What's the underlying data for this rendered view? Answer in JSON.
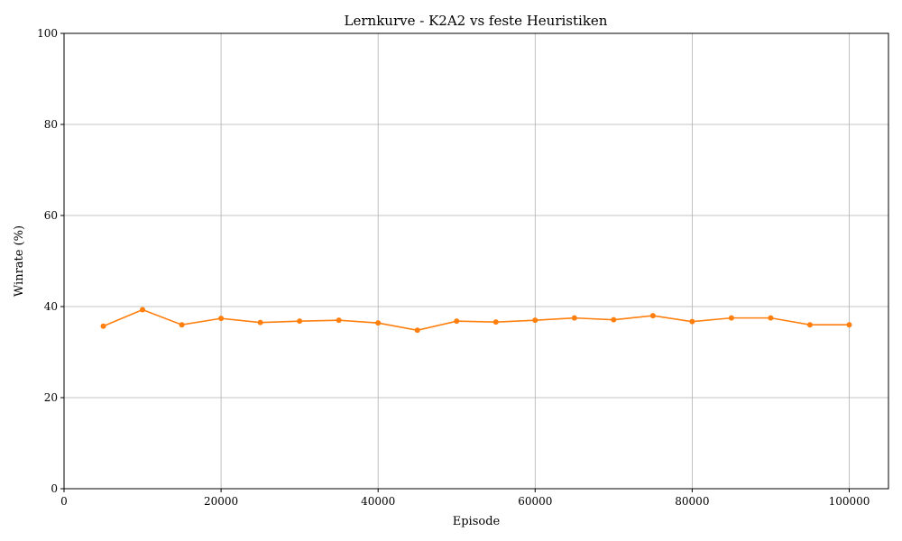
{
  "chart_data": {
    "type": "line",
    "title": "Lernkurve - K2A2 vs feste Heuristiken",
    "xlabel": "Episode",
    "ylabel": "Winrate (%)",
    "xlim": [
      0,
      105000
    ],
    "ylim": [
      0,
      100
    ],
    "xticks": [
      0,
      20000,
      40000,
      60000,
      80000,
      100000
    ],
    "yticks": [
      0,
      20,
      40,
      60,
      80,
      100
    ],
    "xtick_labels": [
      "0",
      "20000",
      "40000",
      "60000",
      "80000",
      "100000"
    ],
    "ytick_labels": [
      "0",
      "20",
      "40",
      "60",
      "80",
      "100"
    ],
    "grid": true,
    "series": [
      {
        "color": "#ff7f0e",
        "marker": "circle",
        "x": [
          5000,
          10000,
          15000,
          20000,
          25000,
          30000,
          35000,
          40000,
          45000,
          50000,
          55000,
          60000,
          65000,
          70000,
          75000,
          80000,
          85000,
          90000,
          95000,
          100000
        ],
        "y": [
          35.7,
          39.3,
          36.0,
          37.4,
          36.5,
          36.8,
          37.0,
          36.4,
          34.8,
          36.8,
          36.6,
          37.0,
          37.5,
          37.1,
          38.0,
          36.7,
          37.5,
          37.5,
          36.0,
          36.0
        ]
      }
    ]
  }
}
